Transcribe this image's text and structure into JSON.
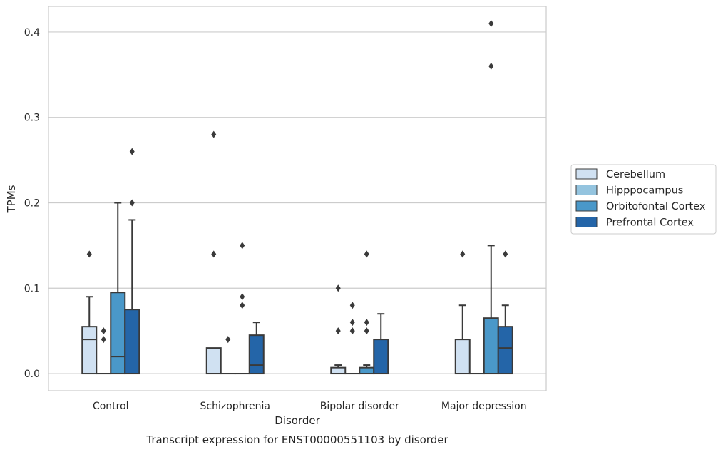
{
  "chart_data": {
    "type": "box",
    "title": "",
    "caption": "Transcript expression for ENST00000551103 by disorder",
    "xlabel": "Disorder",
    "ylabel": "TPMs",
    "ylim": [
      -0.02,
      0.43
    ],
    "yticks": [
      "0.0",
      "0.1",
      "0.2",
      "0.3",
      "0.4"
    ],
    "ytick_values": [
      0.0,
      0.1,
      0.2,
      0.3,
      0.4
    ],
    "grid": "horizontal",
    "legend_position": "right",
    "categories": [
      "Control",
      "Schizophrenia",
      "Bipolar disorder",
      "Major depression"
    ],
    "series": [
      {
        "name": "Cerebellum",
        "color": "#d0e1f2",
        "boxes": [
          {
            "q1": 0.0,
            "median": 0.04,
            "q3": 0.055,
            "whislo": 0.0,
            "whishi": 0.09,
            "fliers": [
              0.14
            ]
          },
          {
            "q1": 0.0,
            "median": 0.0,
            "q3": 0.03,
            "whislo": 0.0,
            "whishi": 0.03,
            "fliers": [
              0.14,
              0.28
            ]
          },
          {
            "q1": 0.0,
            "median": 0.0,
            "q3": 0.007,
            "whislo": 0.0,
            "whishi": 0.01,
            "fliers": [
              0.05,
              0.1
            ]
          },
          {
            "q1": 0.0,
            "median": 0.0,
            "q3": 0.04,
            "whislo": 0.0,
            "whishi": 0.08,
            "fliers": [
              0.14
            ]
          }
        ]
      },
      {
        "name": "Hipppocampus",
        "color": "#94c4df",
        "boxes": [
          {
            "q1": 0.0,
            "median": 0.0,
            "q3": 0.0,
            "whislo": 0.0,
            "whishi": 0.0,
            "fliers": [
              0.04,
              0.05
            ]
          },
          {
            "q1": 0.0,
            "median": 0.0,
            "q3": 0.0,
            "whislo": 0.0,
            "whishi": 0.0,
            "fliers": [
              0.04
            ]
          },
          {
            "q1": 0.0,
            "median": 0.0,
            "q3": 0.0,
            "whislo": 0.0,
            "whishi": 0.0,
            "fliers": [
              0.05,
              0.06,
              0.08
            ]
          },
          {
            "q1": 0.0,
            "median": 0.0,
            "q3": 0.0,
            "whislo": 0.0,
            "whishi": 0.0,
            "fliers": []
          }
        ]
      },
      {
        "name": "Orbitofontal Cortex",
        "color": "#4a98c9",
        "boxes": [
          {
            "q1": 0.0,
            "median": 0.02,
            "q3": 0.095,
            "whislo": 0.0,
            "whishi": 0.2,
            "fliers": []
          },
          {
            "q1": 0.0,
            "median": 0.0,
            "q3": 0.0,
            "whislo": 0.0,
            "whishi": 0.0,
            "fliers": [
              0.08,
              0.09,
              0.15
            ]
          },
          {
            "q1": 0.0,
            "median": 0.0,
            "q3": 0.007,
            "whislo": 0.0,
            "whishi": 0.01,
            "fliers": [
              0.05,
              0.06,
              0.14
            ]
          },
          {
            "q1": 0.0,
            "median": 0.0,
            "q3": 0.065,
            "whislo": 0.0,
            "whishi": 0.15,
            "fliers": [
              0.36,
              0.41
            ]
          }
        ]
      },
      {
        "name": "Prefrontal Cortex",
        "color": "#2465a8",
        "boxes": [
          {
            "q1": 0.0,
            "median": 0.0,
            "q3": 0.075,
            "whislo": 0.0,
            "whishi": 0.18,
            "fliers": [
              0.2,
              0.26
            ]
          },
          {
            "q1": 0.0,
            "median": 0.01,
            "q3": 0.045,
            "whislo": 0.0,
            "whishi": 0.06,
            "fliers": []
          },
          {
            "q1": 0.0,
            "median": 0.0,
            "q3": 0.04,
            "whislo": 0.0,
            "whishi": 0.07,
            "fliers": []
          },
          {
            "q1": 0.0,
            "median": 0.03,
            "q3": 0.055,
            "whislo": 0.0,
            "whishi": 0.08,
            "fliers": [
              0.14
            ]
          }
        ]
      }
    ]
  }
}
